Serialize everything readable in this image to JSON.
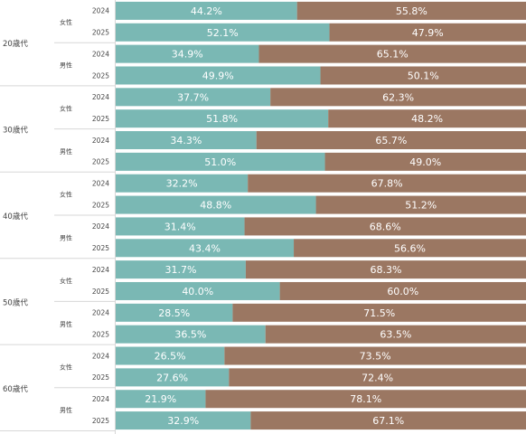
{
  "colors": {
    "series_a": "#7ab8b4",
    "series_b": "#9b7762",
    "divider": "#d7d7d7",
    "label": "#444444"
  },
  "chart_data": {
    "type": "bar",
    "orientation": "horizontal",
    "stacked": "100%",
    "xlim": [
      0,
      100
    ],
    "grid": false,
    "legend": "none",
    "series": [
      {
        "values": [
          44.2,
          52.1,
          34.9,
          49.9,
          37.7,
          51.8,
          34.3,
          51.0,
          32.2,
          48.8,
          31.4,
          43.4,
          31.7,
          40.0,
          28.5,
          36.5,
          26.5,
          27.6,
          21.9,
          32.9
        ],
        "labels": [
          "44.2%",
          "52.1%",
          "34.9%",
          "49.9%",
          "37.7%",
          "51.8%",
          "34.3%",
          "51.0%",
          "32.2%",
          "48.8%",
          "31.4%",
          "43.4%",
          "31.7%",
          "40.0%",
          "28.5%",
          "36.5%",
          "26.5%",
          "27.6%",
          "21.9%",
          "32.9%"
        ]
      },
      {
        "values": [
          55.8,
          47.9,
          65.1,
          50.1,
          62.3,
          48.2,
          65.7,
          49.0,
          67.8,
          51.2,
          68.6,
          56.6,
          68.3,
          60.0,
          71.5,
          63.5,
          73.5,
          72.4,
          78.1,
          67.1
        ],
        "labels": [
          "55.8%",
          "47.9%",
          "65.1%",
          "50.1%",
          "62.3%",
          "48.2%",
          "65.7%",
          "49.0%",
          "67.8%",
          "51.2%",
          "68.6%",
          "56.6%",
          "68.3%",
          "60.0%",
          "71.5%",
          "63.5%",
          "73.5%",
          "72.4%",
          "78.1%",
          "67.1%"
        ]
      }
    ],
    "groups": [
      {
        "age": "20歳代",
        "sexes": [
          {
            "sex": "女性",
            "years": [
              "2024",
              "2025"
            ]
          },
          {
            "sex": "男性",
            "years": [
              "2024",
              "2025"
            ]
          }
        ]
      },
      {
        "age": "30歳代",
        "sexes": [
          {
            "sex": "女性",
            "years": [
              "2024",
              "2025"
            ]
          },
          {
            "sex": "男性",
            "years": [
              "2024",
              "2025"
            ]
          }
        ]
      },
      {
        "age": "40歳代",
        "sexes": [
          {
            "sex": "女性",
            "years": [
              "2024",
              "2025"
            ]
          },
          {
            "sex": "男性",
            "years": [
              "2024",
              "2025"
            ]
          }
        ]
      },
      {
        "age": "50歳代",
        "sexes": [
          {
            "sex": "女性",
            "years": [
              "2024",
              "2025"
            ]
          },
          {
            "sex": "男性",
            "years": [
              "2024",
              "2025"
            ]
          }
        ]
      },
      {
        "age": "60歳代",
        "sexes": [
          {
            "sex": "女性",
            "years": [
              "2024",
              "2025"
            ]
          },
          {
            "sex": "男性",
            "years": [
              "2024",
              "2025"
            ]
          }
        ]
      }
    ]
  }
}
